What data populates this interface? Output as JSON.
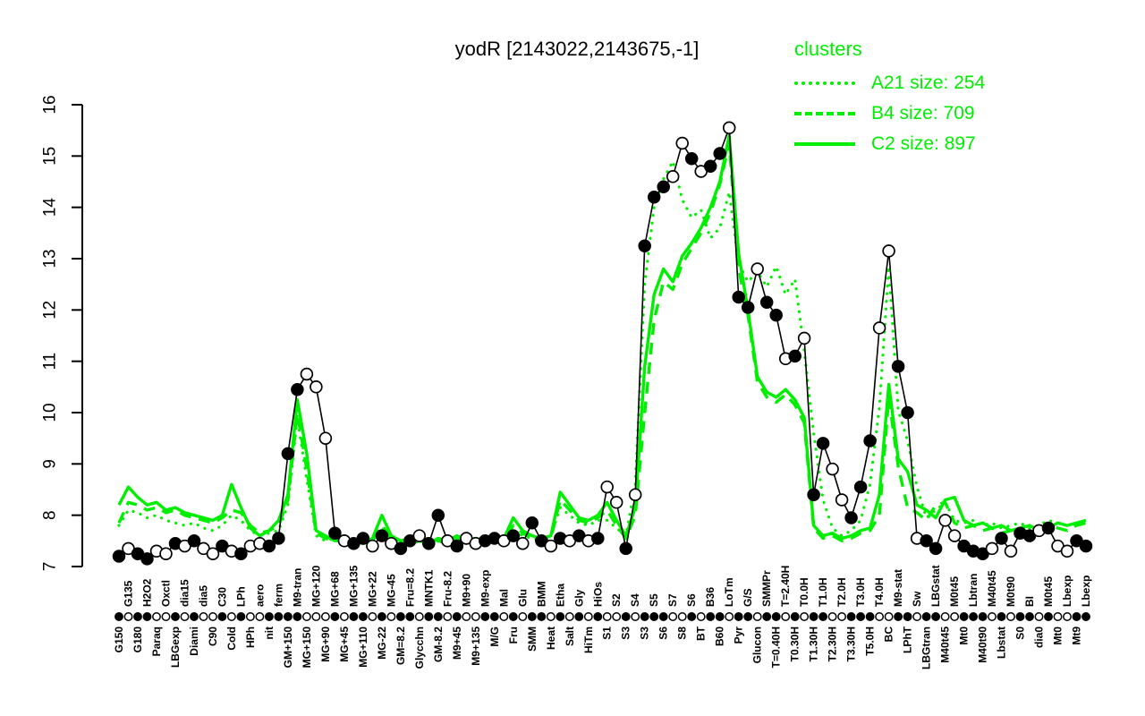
{
  "title": "yodR [2143022,2143675,-1]",
  "colors": {
    "cluster_green": "#00EE00",
    "profile_black": "#000000",
    "open_marker_fill": "#ffffff"
  },
  "legend": {
    "title": "clusters",
    "items": [
      {
        "label": "A21 size: 254",
        "style": "dotted"
      },
      {
        "label": "B4 size: 709",
        "style": "dashed"
      },
      {
        "label": "C2 size: 897",
        "style": "solid"
      }
    ]
  },
  "chart_data": {
    "type": "line",
    "title": "yodR [2143022,2143675,-1]",
    "xlabel": "",
    "ylabel": "",
    "ylim": [
      7,
      16
    ],
    "yticks": [
      7,
      8,
      9,
      10,
      11,
      12,
      13,
      14,
      15,
      16
    ],
    "grid": false,
    "legend_position": "top-right",
    "categories": [
      "G150",
      "G135",
      "G180",
      "H2O2",
      "Paraq",
      "Oxctl",
      "LBGexp",
      "dia15",
      "Diami",
      "dia5",
      "C90",
      "C30",
      "Cold",
      "LPh",
      "HPh",
      "aero",
      "nit",
      "ferm",
      "GM+150",
      "M9-tran",
      "MG+150",
      "MG+120",
      "MG+90",
      "MG+68",
      "MG+45",
      "MG+135",
      "MG+110",
      "MG+22",
      "MG-22",
      "MG-45",
      "GM=8.2",
      "Fru=8.2",
      "Glycchn",
      "MNTK1",
      "GM-8.2",
      "Fru-8.2",
      "M9+45",
      "M9+90",
      "M9+135",
      "M9-exp",
      "M/G",
      "Mal",
      "Fru",
      "Glu",
      "SMM",
      "BMM",
      "Heat",
      "Etha",
      "Salt",
      "Gly",
      "HiTm",
      "HiOs",
      "S1",
      "S2",
      "S3",
      "S4",
      "S3",
      "S5",
      "S6",
      "S7",
      "S8",
      "S6",
      "BT",
      "B36",
      "B60",
      "LoTm",
      "Pyr",
      "G/S",
      "Glucon",
      "SMMPr",
      "T=0.40H",
      "T=2.40H",
      "T0.30H",
      "T0.0H",
      "T1.30H",
      "T1.0H",
      "T2.30H",
      "T2.0H",
      "T3.30H",
      "T3.0H",
      "T5.0H",
      "T4.0H",
      "BC",
      "M9-stat",
      "LPhT",
      "Sw",
      "LBGtran",
      "LBGstat",
      "M40t45",
      "M0t45",
      "Mt0",
      "Lbtran",
      "M40t90",
      "M40t45",
      "Lbstat",
      "M0t90",
      "S0",
      "BI",
      "dia0",
      "M0t45",
      "Mt0",
      "Lbexp",
      "Mt9",
      "Lbexp"
    ],
    "series": [
      {
        "name": "yodR",
        "color": "#000000",
        "style": "solid-markers",
        "marker_open": [
          0,
          1,
          0,
          0,
          1,
          1,
          0,
          1,
          0,
          1,
          1,
          0,
          1,
          0,
          1,
          1,
          0,
          0,
          0,
          0,
          1,
          1,
          1,
          0,
          1,
          0,
          0,
          1,
          0,
          1,
          0,
          0,
          1,
          0,
          0,
          1,
          0,
          1,
          1,
          0,
          0,
          1,
          0,
          1,
          0,
          0,
          1,
          0,
          1,
          0,
          1,
          0,
          1,
          1,
          0,
          1,
          0,
          0,
          0,
          1,
          1,
          0,
          1,
          0,
          0,
          1,
          0,
          0,
          1,
          0,
          0,
          1,
          0,
          1,
          0,
          0,
          1,
          1,
          0,
          0,
          0,
          1,
          1,
          0,
          0,
          1,
          0,
          0,
          1,
          1,
          0,
          0,
          0,
          1,
          0,
          1,
          0,
          0,
          1,
          0,
          1,
          1,
          0,
          0
        ],
        "values": [
          7.2,
          7.35,
          7.25,
          7.15,
          7.3,
          7.25,
          7.45,
          7.4,
          7.5,
          7.35,
          7.25,
          7.4,
          7.3,
          7.25,
          7.4,
          7.45,
          7.4,
          7.55,
          9.2,
          10.45,
          10.75,
          10.5,
          9.5,
          7.65,
          7.5,
          7.45,
          7.55,
          7.4,
          7.6,
          7.45,
          7.35,
          7.5,
          7.6,
          7.45,
          8.0,
          7.5,
          7.4,
          7.55,
          7.45,
          7.5,
          7.55,
          7.5,
          7.6,
          7.45,
          7.85,
          7.5,
          7.4,
          7.55,
          7.5,
          7.6,
          7.5,
          7.55,
          8.55,
          8.25,
          7.35,
          8.4,
          13.25,
          14.2,
          14.4,
          14.6,
          15.25,
          14.95,
          14.7,
          14.8,
          15.05,
          15.55,
          12.25,
          12.05,
          12.8,
          12.15,
          11.9,
          11.05,
          11.1,
          11.45,
          8.4,
          9.4,
          8.9,
          8.3,
          7.95,
          8.55,
          9.45,
          11.65,
          13.15,
          10.9,
          10.0,
          7.55,
          7.5,
          7.35,
          7.9,
          7.6,
          7.4,
          7.3,
          7.25,
          7.35,
          7.55,
          7.3,
          7.65,
          7.6,
          7.7,
          7.75,
          7.4,
          7.3,
          7.5,
          7.4
        ]
      },
      {
        "name": "A21 size: 254",
        "color": "#00EE00",
        "style": "dotted",
        "values": [
          7.8,
          8.1,
          8.05,
          7.95,
          8.0,
          7.9,
          7.85,
          7.8,
          7.85,
          7.75,
          7.7,
          7.8,
          8.0,
          7.9,
          7.7,
          7.6,
          7.65,
          7.7,
          8.2,
          9.9,
          8.7,
          7.6,
          7.5,
          7.55,
          7.45,
          7.5,
          7.55,
          7.5,
          7.75,
          7.6,
          7.5,
          7.55,
          7.45,
          7.5,
          7.55,
          7.45,
          7.5,
          7.55,
          7.5,
          7.45,
          7.55,
          7.5,
          7.7,
          7.6,
          7.55,
          7.5,
          7.6,
          8.15,
          8.0,
          7.85,
          7.8,
          7.9,
          7.9,
          7.75,
          7.6,
          8.6,
          12.5,
          14.0,
          14.55,
          14.9,
          14.15,
          13.8,
          13.95,
          13.4,
          13.6,
          14.3,
          12.9,
          12.55,
          12.75,
          12.45,
          12.85,
          12.3,
          12.6,
          11.2,
          9.6,
          8.3,
          7.75,
          7.6,
          7.7,
          7.9,
          8.6,
          10.1,
          12.85,
          10.05,
          9.45,
          8.55,
          7.95,
          8.1,
          8.25,
          7.9,
          7.85,
          7.9,
          7.8,
          7.85,
          7.75,
          7.8,
          7.85,
          7.75,
          7.8,
          7.9,
          7.85,
          7.8,
          7.85,
          7.9
        ]
      },
      {
        "name": "B4 size: 709",
        "color": "#00EE00",
        "style": "dashed",
        "values": [
          7.85,
          8.25,
          8.2,
          8.1,
          8.15,
          8.05,
          8.1,
          8.0,
          7.95,
          7.9,
          7.85,
          7.95,
          8.1,
          8.05,
          7.8,
          7.65,
          7.7,
          7.8,
          8.3,
          10.0,
          8.9,
          7.65,
          7.55,
          7.5,
          7.5,
          7.55,
          7.45,
          7.5,
          7.8,
          7.55,
          7.5,
          7.45,
          7.5,
          7.55,
          7.5,
          7.45,
          7.55,
          7.5,
          7.55,
          7.5,
          7.55,
          7.5,
          7.8,
          7.65,
          7.55,
          7.5,
          7.55,
          8.3,
          8.1,
          7.9,
          7.85,
          7.95,
          8.1,
          7.8,
          7.55,
          8.0,
          10.0,
          11.8,
          12.55,
          12.4,
          12.9,
          13.2,
          13.5,
          13.9,
          14.45,
          15.25,
          12.8,
          11.9,
          10.6,
          10.3,
          10.2,
          10.35,
          10.15,
          9.8,
          7.75,
          7.55,
          7.6,
          7.5,
          7.55,
          7.65,
          7.7,
          8.0,
          10.3,
          8.95,
          8.15,
          8.05,
          7.9,
          8.2,
          8.25,
          7.85,
          7.75,
          7.8,
          7.7,
          7.75,
          7.65,
          7.7,
          7.75,
          7.65,
          7.7,
          7.8,
          7.75,
          7.7,
          7.8,
          7.85
        ]
      },
      {
        "name": "C2 size: 897",
        "color": "#00EE00",
        "style": "solid",
        "values": [
          8.2,
          8.55,
          8.35,
          8.2,
          8.25,
          8.1,
          8.15,
          8.05,
          8.0,
          7.95,
          7.9,
          8.0,
          8.6,
          8.15,
          7.75,
          7.6,
          7.7,
          7.9,
          8.4,
          10.25,
          9.2,
          7.7,
          7.6,
          7.5,
          7.55,
          7.5,
          7.45,
          7.55,
          8.0,
          7.6,
          7.5,
          7.55,
          7.5,
          7.45,
          7.55,
          7.5,
          7.6,
          7.5,
          7.55,
          7.5,
          7.6,
          7.55,
          7.95,
          7.7,
          7.6,
          7.55,
          7.6,
          8.45,
          8.2,
          7.95,
          7.9,
          8.0,
          8.25,
          7.9,
          7.6,
          8.15,
          10.9,
          12.3,
          12.8,
          12.55,
          13.05,
          13.3,
          13.6,
          14.0,
          14.5,
          15.4,
          13.1,
          12.0,
          10.7,
          10.4,
          10.3,
          10.45,
          10.25,
          9.9,
          7.8,
          7.6,
          7.65,
          7.55,
          7.6,
          7.7,
          7.75,
          8.4,
          10.55,
          9.1,
          8.85,
          8.2,
          8.1,
          7.95,
          8.3,
          8.35,
          7.9,
          7.8,
          7.85,
          7.75,
          7.8,
          7.7,
          7.75,
          7.8,
          7.7,
          7.75,
          7.85,
          7.8,
          7.85,
          7.9
        ]
      }
    ]
  }
}
